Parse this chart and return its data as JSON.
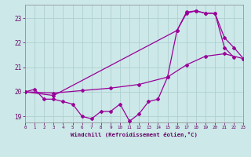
{
  "background_color": "#cce8e8",
  "grid_color": "#aacccc",
  "line_color": "#990099",
  "xlim": [
    0,
    23
  ],
  "ylim": [
    18.75,
    23.55
  ],
  "xticks": [
    0,
    1,
    2,
    3,
    4,
    5,
    6,
    7,
    8,
    9,
    10,
    11,
    12,
    13,
    14,
    15,
    16,
    17,
    18,
    19,
    20,
    21,
    22,
    23
  ],
  "yticks": [
    19,
    20,
    21,
    22,
    23
  ],
  "curve1_x": [
    0,
    1,
    2,
    3,
    4,
    5,
    6,
    7,
    8,
    9,
    10,
    11,
    12,
    13,
    14,
    15,
    16,
    17,
    18,
    19,
    20,
    21,
    22
  ],
  "curve1_y": [
    20.0,
    20.1,
    19.7,
    19.7,
    19.6,
    19.5,
    19.0,
    18.9,
    19.2,
    19.2,
    19.5,
    18.8,
    19.1,
    19.6,
    19.7,
    20.6,
    22.5,
    23.2,
    23.3,
    23.2,
    23.2,
    21.8,
    21.4
  ],
  "curve2_x": [
    0,
    3,
    16,
    17,
    18,
    19,
    20,
    21,
    22,
    23
  ],
  "curve2_y": [
    20.0,
    19.85,
    22.5,
    23.25,
    23.3,
    23.2,
    23.2,
    22.2,
    21.8,
    21.35
  ],
  "curve3_x": [
    0,
    3,
    6,
    9,
    12,
    15,
    17,
    19,
    21,
    23
  ],
  "curve3_y": [
    20.0,
    19.95,
    20.05,
    20.15,
    20.3,
    20.6,
    21.1,
    21.45,
    21.55,
    21.35
  ],
  "xlabel": "Windchill (Refroidissement éolien,°C)"
}
